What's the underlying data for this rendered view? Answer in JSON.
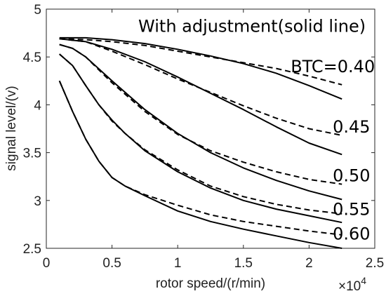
{
  "chart_data": {
    "type": "line",
    "xlabel": "rotor speed/(r/min)",
    "ylabel": "signal level/(v)",
    "xlim": [
      0,
      25000
    ],
    "ylim": [
      2.5,
      5
    ],
    "x_tick_labels": [
      "0",
      "0.5",
      "1",
      "1.5",
      "2",
      "2.5"
    ],
    "x_ticks": [
      0,
      5000,
      10000,
      15000,
      20000,
      25000
    ],
    "y_tick_labels": [
      "2.5",
      "3",
      "3.5",
      "4",
      "4.5",
      "5"
    ],
    "y_ticks": [
      2.5,
      3,
      3.5,
      4,
      4.5,
      5
    ],
    "x_exponent_label": "×10",
    "x_exponent_power": "4",
    "grid": false,
    "annotations": [
      {
        "text": "With adjustment(solid line)",
        "x": 7000,
        "y": 4.76
      },
      {
        "text": "BTC=0.40",
        "x": 18600,
        "y": 4.34
      },
      {
        "text": "0.45",
        "x": 21800,
        "y": 3.71
      },
      {
        "text": "0.50",
        "x": 21800,
        "y": 3.2
      },
      {
        "text": "0.55",
        "x": 21800,
        "y": 2.85
      },
      {
        "text": "0.60",
        "x": 21800,
        "y": 2.59
      }
    ],
    "series": [
      {
        "style": "solid",
        "x": [
          1000,
          3000,
          5000,
          7500,
          10000,
          12500,
          15000,
          17500,
          20000,
          22500
        ],
        "values": [
          4.7,
          4.7,
          4.68,
          4.64,
          4.58,
          4.51,
          4.43,
          4.33,
          4.2,
          4.06
        ]
      },
      {
        "style": "dashed",
        "x": [
          1000,
          3000,
          5000,
          7500,
          10000,
          12500,
          15000,
          17500,
          20000,
          22500
        ],
        "values": [
          4.69,
          4.68,
          4.66,
          4.62,
          4.56,
          4.5,
          4.44,
          4.38,
          4.3,
          4.21
        ]
      },
      {
        "style": "solid",
        "x": [
          1000,
          3000,
          5000,
          7500,
          10000,
          12500,
          15000,
          17500,
          20000,
          22500
        ],
        "values": [
          4.69,
          4.66,
          4.58,
          4.45,
          4.29,
          4.12,
          3.95,
          3.77,
          3.6,
          3.48
        ]
      },
      {
        "style": "dashed",
        "x": [
          1000,
          3000,
          5000,
          7500,
          10000,
          12500,
          15000,
          17500,
          20000,
          22500
        ],
        "values": [
          4.69,
          4.66,
          4.56,
          4.42,
          4.27,
          4.13,
          3.99,
          3.86,
          3.75,
          3.68
        ]
      },
      {
        "style": "solid",
        "x": [
          1000,
          2000,
          3000,
          5000,
          7500,
          10000,
          12500,
          15000,
          17500,
          20000,
          22500
        ],
        "values": [
          4.63,
          4.59,
          4.5,
          4.25,
          3.95,
          3.7,
          3.5,
          3.34,
          3.21,
          3.1,
          3.01
        ]
      },
      {
        "style": "dashed",
        "x": [
          1000,
          2000,
          3000,
          5000,
          7500,
          10000,
          12500,
          15000,
          17500,
          20000,
          22500
        ],
        "values": [
          4.63,
          4.59,
          4.5,
          4.23,
          3.93,
          3.69,
          3.52,
          3.4,
          3.3,
          3.22,
          3.17
        ]
      },
      {
        "style": "solid",
        "x": [
          1000,
          2000,
          3000,
          4000,
          5000,
          6000,
          7500,
          10000,
          12500,
          15000,
          17500,
          20000,
          22500
        ],
        "values": [
          4.53,
          4.41,
          4.2,
          4.0,
          3.84,
          3.7,
          3.52,
          3.3,
          3.13,
          3.0,
          2.91,
          2.84,
          2.77
        ]
      },
      {
        "style": "dashed",
        "x": [
          1000,
          2000,
          3000,
          4000,
          5000,
          6000,
          7500,
          10000,
          12500,
          15000,
          17500,
          20000,
          22500
        ],
        "values": [
          4.53,
          4.41,
          4.2,
          4.0,
          3.83,
          3.7,
          3.53,
          3.32,
          3.15,
          3.04,
          2.96,
          2.9,
          2.86
        ]
      },
      {
        "style": "solid",
        "x": [
          1000,
          2000,
          3000,
          4000,
          5000,
          6000,
          7500,
          10000,
          12500,
          15000,
          17500,
          20000,
          22500
        ],
        "values": [
          4.25,
          3.93,
          3.64,
          3.41,
          3.24,
          3.15,
          3.05,
          2.89,
          2.78,
          2.7,
          2.63,
          2.56,
          2.5
        ]
      },
      {
        "style": "dashed",
        "x": [
          1000,
          2000,
          3000,
          4000,
          5000,
          6000,
          7500,
          10000,
          12500,
          15000,
          17500,
          20000,
          22500
        ],
        "values": [
          4.25,
          3.93,
          3.64,
          3.41,
          3.24,
          3.15,
          3.06,
          2.95,
          2.85,
          2.78,
          2.73,
          2.68,
          2.64
        ]
      }
    ]
  }
}
